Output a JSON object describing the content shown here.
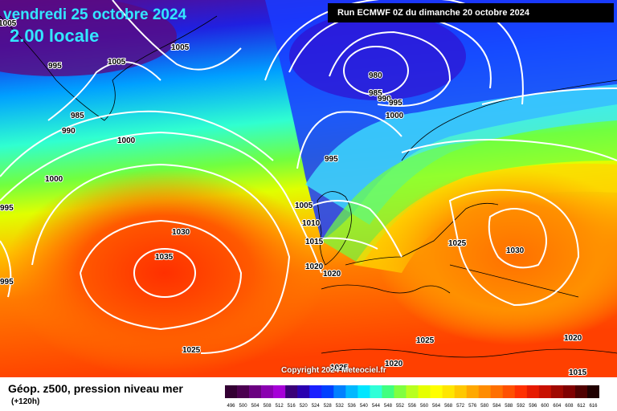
{
  "header": {
    "date": "vendredi 25 octobre 2024",
    "time": "2.00 locale",
    "run": "Run ECMWF 0Z du dimanche 20 octobre 2024"
  },
  "footer": {
    "title": "Géop. z500, pression niveau mer",
    "lead": "(+120h)",
    "copyright": "Copyright 2024 Meteociel.fr"
  },
  "pressure_labels": [
    "1005",
    "995",
    "1005",
    "1005",
    "985",
    "990",
    "1000",
    "1000",
    "995",
    "995",
    "980",
    "985",
    "990",
    "995",
    "1000",
    "995",
    "1005",
    "1010",
    "1015",
    "1020",
    "1020",
    "1030",
    "1035",
    "1025",
    "1025",
    "1025",
    "1030",
    "1025",
    "1020",
    "1020",
    "1015"
  ],
  "legend": {
    "values": [
      "496",
      "500",
      "504",
      "508",
      "512",
      "516",
      "520",
      "524",
      "528",
      "532",
      "536",
      "540",
      "544",
      "548",
      "552",
      "556",
      "560",
      "564",
      "568",
      "572",
      "576",
      "580",
      "584",
      "588",
      "592",
      "596",
      "600",
      "604",
      "608",
      "612",
      "616"
    ],
    "colors": [
      "#330033",
      "#4b0050",
      "#6a0080",
      "#8a00b0",
      "#a600d8",
      "#3a0078",
      "#2a00b0",
      "#1a20ff",
      "#0040ff",
      "#0080ff",
      "#00b8ff",
      "#00e6ff",
      "#30ffd8",
      "#40ff80",
      "#80ff40",
      "#b8ff20",
      "#e6ff00",
      "#ffff00",
      "#ffe600",
      "#ffc800",
      "#ffa800",
      "#ff8c00",
      "#ff7000",
      "#ff5000",
      "#ff3000",
      "#e61a00",
      "#c81000",
      "#a00800",
      "#800000",
      "#500000",
      "#200000"
    ]
  }
}
